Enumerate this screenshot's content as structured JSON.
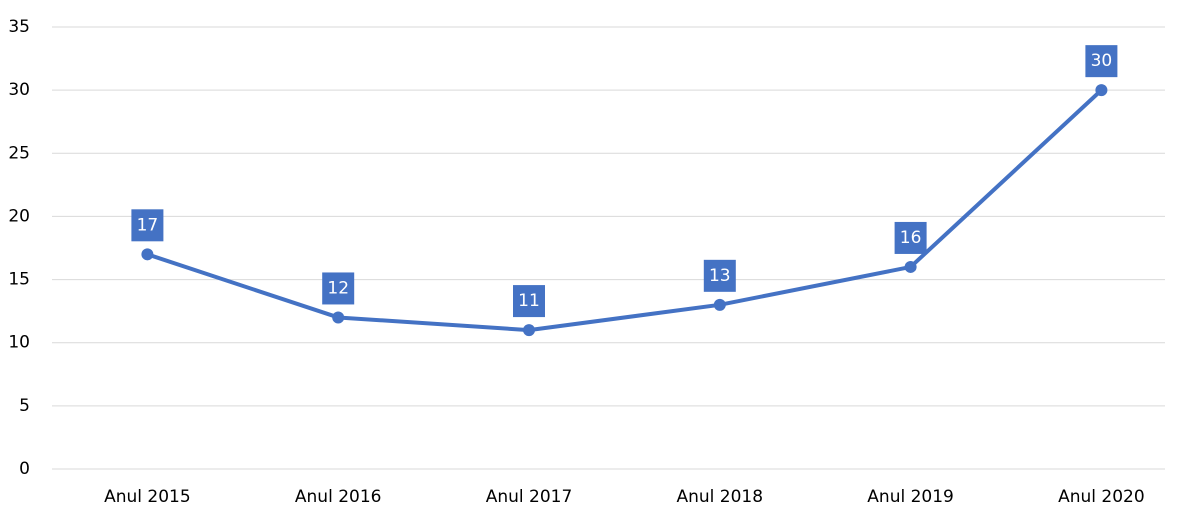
{
  "chart_data": {
    "type": "line",
    "categories": [
      "Anul 2015",
      "Anul 2016",
      "Anul 2017",
      "Anul 2018",
      "Anul 2019",
      "Anul 2020"
    ],
    "series": [
      {
        "color": "#4472c4",
        "values": [
          17,
          12,
          11,
          13,
          16,
          30
        ]
      }
    ],
    "ylim": [
      0,
      35
    ],
    "yticks": [
      0,
      5,
      10,
      15,
      20,
      25,
      30,
      35
    ],
    "grid": true
  }
}
